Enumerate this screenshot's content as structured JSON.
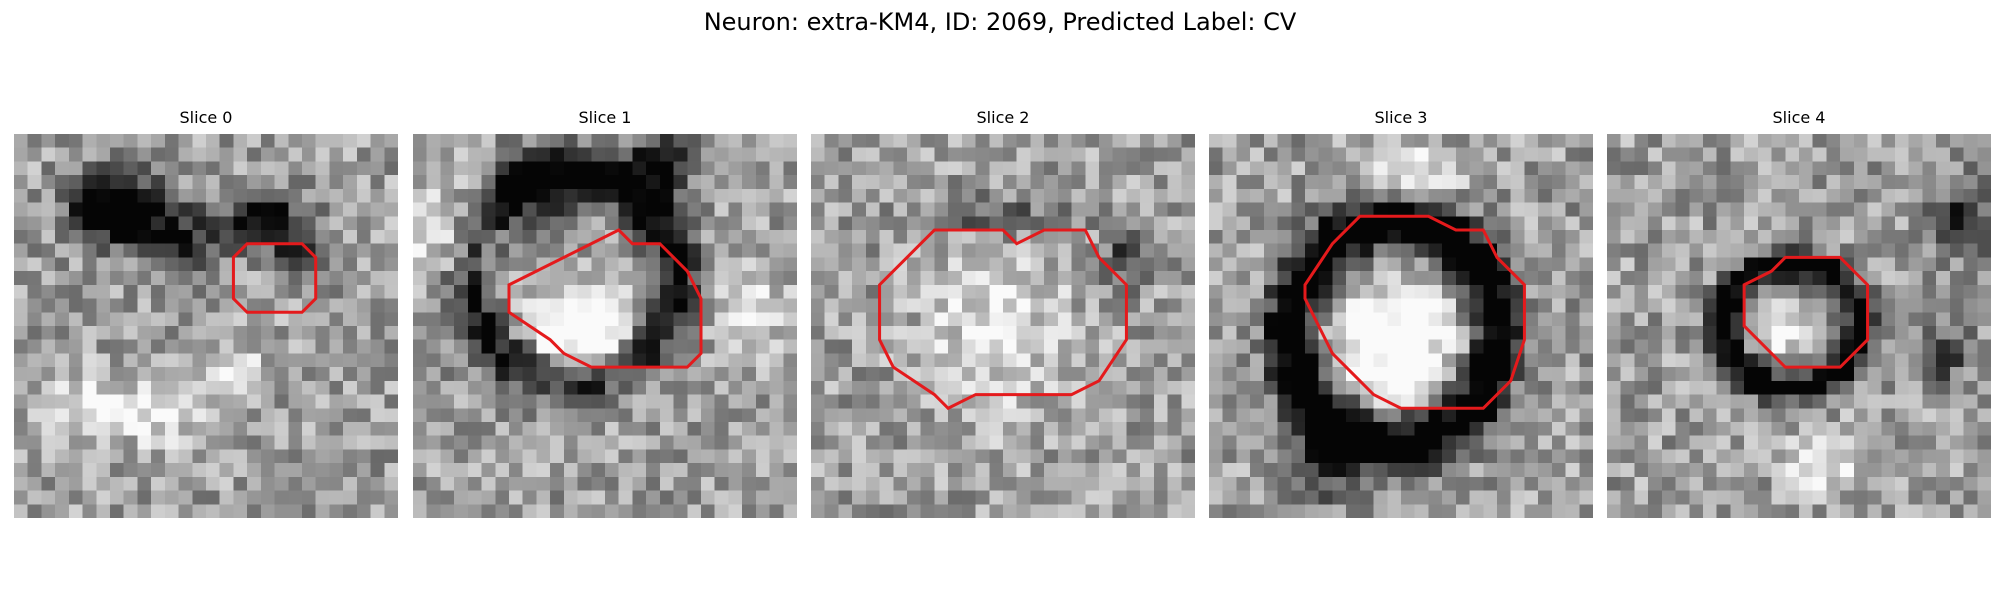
{
  "figure": {
    "title": "Neuron: extra-KM4, ID: 2069, Predicted Label: CV",
    "outline_color": "#e41a1c"
  },
  "panels": [
    {
      "title": "Slice 0",
      "outline": [
        [
          9,
          16
        ],
        [
          12,
          16
        ],
        [
          13,
          17
        ],
        [
          13,
          21
        ],
        [
          12,
          22
        ],
        [
          9,
          22
        ],
        [
          8,
          21
        ],
        [
          8,
          17
        ]
      ],
      "dark_regions": [
        [
          7.5,
          5.5,
          3,
          2.5,
          1.0
        ],
        [
          12.5,
          7.5,
          3,
          2,
          0.5
        ],
        [
          18,
          6,
          2.5,
          2,
          0.5
        ],
        [
          20.5,
          8,
          2,
          2,
          0.4
        ]
      ],
      "light_regions": [
        [
          10.5,
          20,
          3,
          2.5,
          0.35
        ],
        [
          5,
          20,
          2.5,
          2.5,
          0.3
        ],
        [
          16,
          17,
          2,
          2,
          0.25
        ]
      ]
    },
    {
      "title": "Slice 1",
      "outline": [
        [
          11,
          7
        ],
        [
          13,
          7
        ],
        [
          15,
          10
        ],
        [
          16,
          11
        ],
        [
          17,
          13
        ],
        [
          17,
          20
        ],
        [
          16,
          21
        ],
        [
          12,
          21
        ],
        [
          10,
          20
        ],
        [
          8,
          18
        ],
        [
          8,
          16
        ],
        [
          7,
          15
        ]
      ],
      "dark_regions": [
        [
          11.5,
          10.5,
          7.5,
          7.5,
          0.6
        ],
        [
          9.5,
          4,
          3,
          2.5,
          0.4
        ],
        [
          18,
          2,
          2.5,
          2.5,
          0.55
        ]
      ],
      "light_regions": [
        [
          12.5,
          14.5,
          4,
          3.5,
          0.65
        ],
        [
          3,
          8,
          3,
          4,
          0.35
        ],
        [
          24.5,
          13,
          2.5,
          3,
          0.35
        ]
      ]
    },
    {
      "title": "Slice 2",
      "outline": [
        [
          11,
          5
        ],
        [
          15,
          5
        ],
        [
          17,
          6
        ],
        [
          19,
          9
        ],
        [
          20,
          10
        ],
        [
          19,
          12
        ],
        [
          19,
          19
        ],
        [
          18,
          21
        ],
        [
          15,
          23
        ],
        [
          11,
          23
        ],
        [
          9,
          21
        ],
        [
          7,
          20
        ],
        [
          7,
          17
        ],
        [
          8,
          15
        ],
        [
          7,
          14
        ],
        [
          7,
          9
        ],
        [
          8,
          8
        ],
        [
          9,
          7
        ]
      ],
      "dark_regions": [
        [
          13.5,
          6,
          5,
          1.5,
          0.3
        ],
        [
          23,
          9,
          1.5,
          2,
          0.45
        ]
      ],
      "light_regions": [
        [
          13.5,
          14,
          5.5,
          7,
          0.25
        ]
      ]
    },
    {
      "title": "Slice 3",
      "outline": [
        [
          11,
          7
        ],
        [
          12,
          7
        ],
        [
          14,
          8
        ],
        [
          16,
          9
        ],
        [
          18,
          11
        ],
        [
          19,
          12
        ],
        [
          20,
          14
        ],
        [
          20,
          20
        ],
        [
          18,
          22
        ],
        [
          15,
          23
        ],
        [
          11,
          23
        ],
        [
          9,
          21
        ],
        [
          7,
          20
        ],
        [
          7,
          18
        ],
        [
          6,
          16
        ],
        [
          6,
          11
        ],
        [
          8,
          9
        ]
      ],
      "dark_regions": [
        [
          13.5,
          14.5,
          7.5,
          8,
          0.85
        ],
        [
          8.5,
          23,
          2,
          3.5,
          0.5
        ],
        [
          10.5,
          22.5,
          3,
          2,
          0.3
        ]
      ],
      "light_regions": [
        [
          13.5,
          15.5,
          4.5,
          4.5,
          0.55
        ],
        [
          15,
          3,
          3,
          2,
          0.3
        ]
      ]
    },
    {
      "title": "Slice 4",
      "outline": [
        [
          11,
          10
        ],
        [
          14,
          10
        ],
        [
          15,
          11
        ],
        [
          17,
          13
        ],
        [
          17,
          17
        ],
        [
          16,
          18
        ],
        [
          15,
          19
        ],
        [
          11,
          19
        ],
        [
          10,
          18
        ],
        [
          9,
          17
        ],
        [
          9,
          13
        ],
        [
          10,
          12
        ]
      ],
      "dark_regions": [
        [
          13.5,
          14,
          5,
          4.5,
          0.75
        ],
        [
          24.5,
          16,
          2,
          2,
          0.4
        ],
        [
          26,
          6,
          2,
          2.5,
          0.5
        ]
      ],
      "light_regions": [
        [
          13,
          14.5,
          2.2,
          2,
          0.3
        ],
        [
          16,
          24,
          3,
          2,
          0.3
        ]
      ]
    }
  ]
}
